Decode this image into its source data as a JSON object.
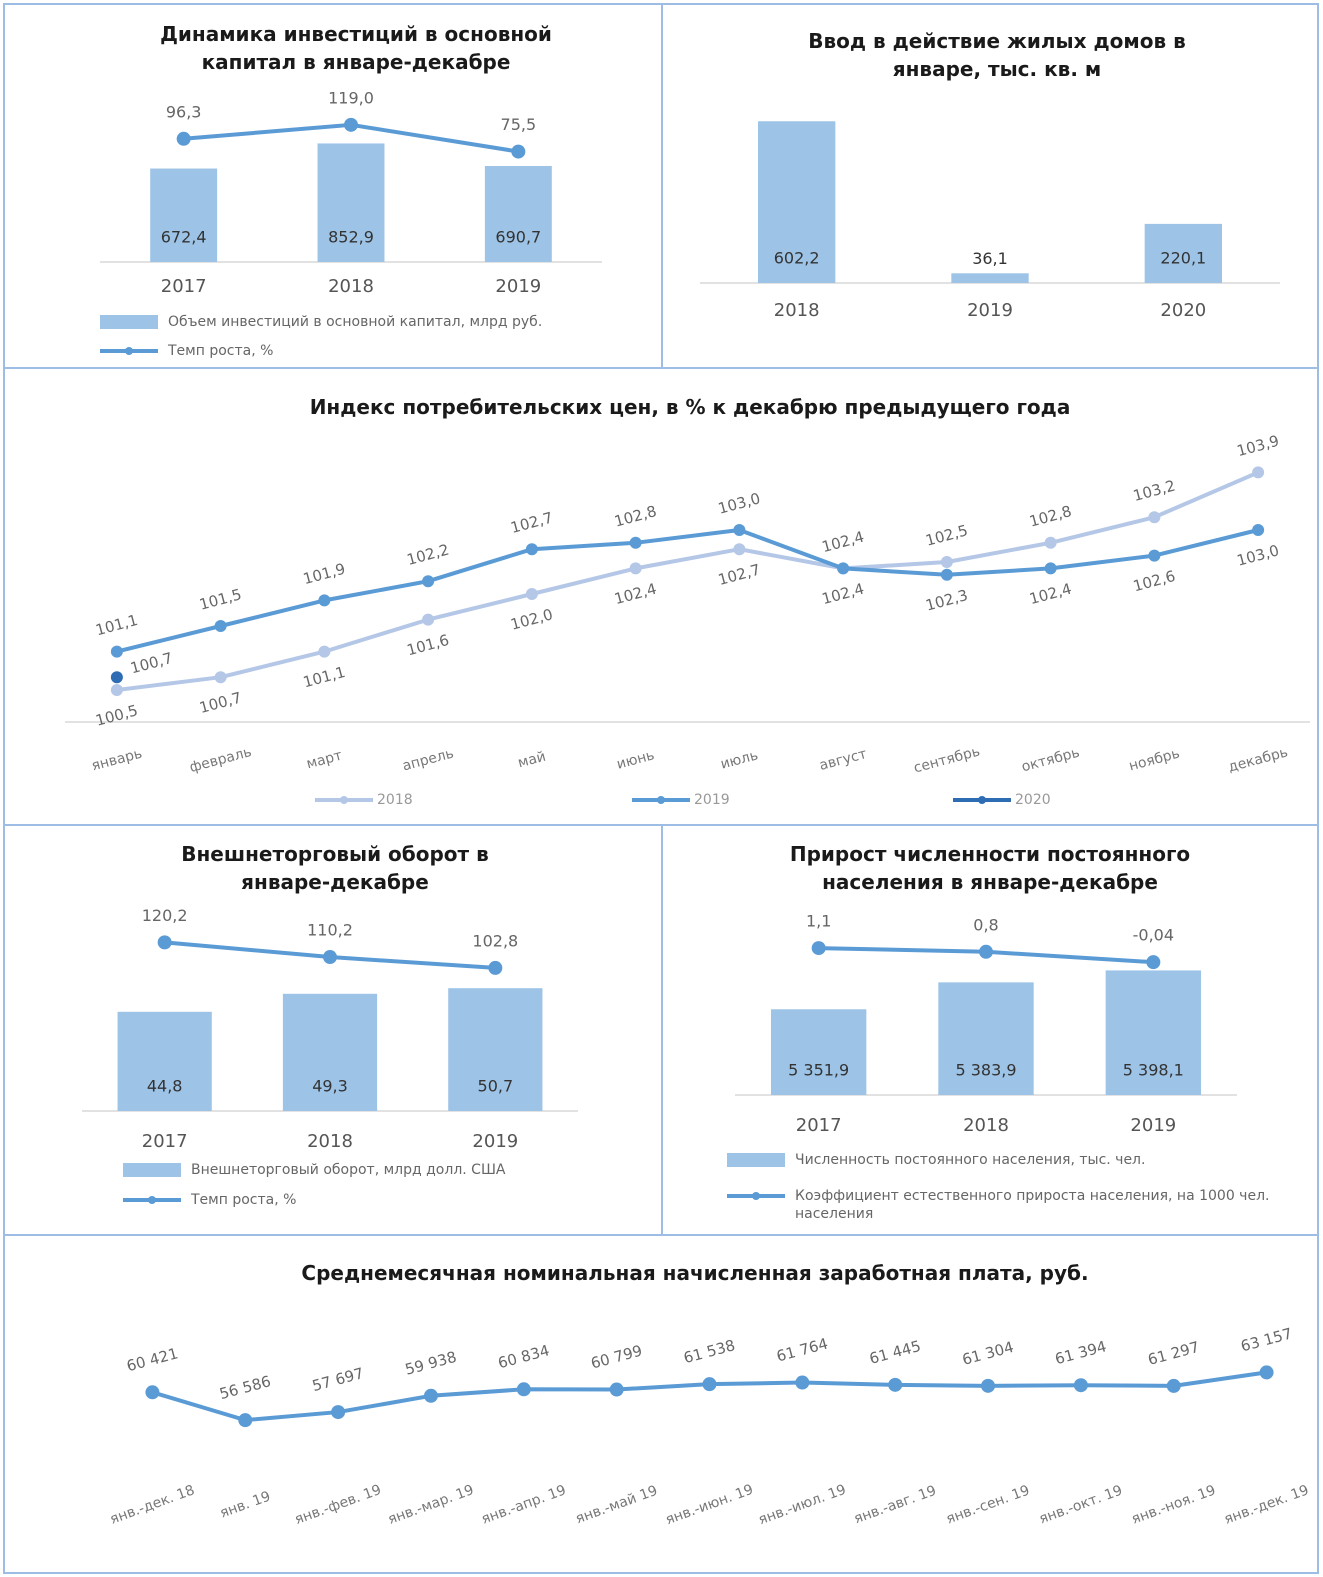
{
  "chart_data": [
    {
      "type": "combo",
      "title": "Динамика инвестиций в основной капитал в январе-декабре",
      "categories": [
        "2017",
        "2018",
        "2019"
      ],
      "series": [
        {
          "name": "Объем инвестиций в основной капитал, млрд руб.",
          "type": "bar",
          "color": "#9dc3e6",
          "values": [
            672.4,
            852.9,
            690.7
          ],
          "value_labels": [
            "672,4",
            "852,9",
            "690,7"
          ]
        },
        {
          "name": "Темп роста, %",
          "type": "line",
          "axis": "y2",
          "color": "#5b9bd5",
          "values": [
            96.3,
            119.0,
            75.5
          ],
          "value_labels": [
            "96,3",
            "119,0",
            "75,5"
          ]
        }
      ],
      "ylim": [
        0,
        1000
      ],
      "y2lim": [
        0,
        200
      ]
    },
    {
      "type": "bar",
      "title": "Ввод в действие жилых домов в январе, тыс. кв. м",
      "categories": [
        "2018",
        "2019",
        "2020"
      ],
      "values": [
        602.2,
        36.1,
        220.1
      ],
      "value_labels": [
        "602,2",
        "36,1",
        "220,1"
      ],
      "color": "#9dc3e6",
      "ylim": [
        0,
        700
      ]
    },
    {
      "type": "line",
      "title": "Индекс потребительских цен, в % к декабрю предыдущего года",
      "categories": [
        "январь",
        "февраль",
        "март",
        "апрель",
        "май",
        "июнь",
        "июль",
        "август",
        "сентябрь",
        "октябрь",
        "ноябрь",
        "декабрь"
      ],
      "series": [
        {
          "name": "2018",
          "color": "#b4c7e7",
          "values": [
            100.5,
            100.7,
            101.1,
            101.6,
            102.0,
            102.4,
            102.7,
            102.4,
            102.5,
            102.8,
            103.2,
            103.9
          ],
          "value_labels": [
            "100,5",
            "100,7",
            "101,1",
            "101,6",
            "102,0",
            "102,4",
            "102,7",
            "102,4",
            "102,5",
            "102,8",
            "103,2",
            "103,9"
          ]
        },
        {
          "name": "2019",
          "color": "#5b9bd5",
          "values": [
            101.1,
            101.5,
            101.9,
            102.2,
            102.7,
            102.8,
            103.0,
            102.4,
            102.3,
            102.4,
            102.6,
            103.0
          ],
          "value_labels": [
            "101,1",
            "101,5",
            "101,9",
            "102,2",
            "102,7",
            "102,8",
            "103,0",
            "102,4",
            "102,3",
            "102,4",
            "102,6",
            "103,0"
          ]
        },
        {
          "name": "2020",
          "color": "#2e6db4",
          "values": [
            100.7,
            null,
            null,
            null,
            null,
            null,
            null,
            null,
            null,
            null,
            null,
            null
          ],
          "value_labels": [
            "100,7",
            null,
            null,
            null,
            null,
            null,
            null,
            null,
            null,
            null,
            null,
            null
          ]
        }
      ],
      "ylim": [
        100,
        104
      ]
    },
    {
      "type": "combo",
      "title": "Внешнеторговый оборот в январе-декабре",
      "categories": [
        "2017",
        "2018",
        "2019"
      ],
      "series": [
        {
          "name": "Внешнеторговый оборот, млрд долл. США",
          "type": "bar",
          "color": "#9dc3e6",
          "values": [
            44.8,
            49.3,
            50.7
          ],
          "value_labels": [
            "44,8",
            "49,3",
            "50,7"
          ]
        },
        {
          "name": "Темп роста, %",
          "type": "line",
          "axis": "y2",
          "color": "#5b9bd5",
          "values": [
            120.2,
            110.2,
            102.8
          ],
          "value_labels": [
            "120,2",
            "110,2",
            "102,8"
          ]
        }
      ],
      "ylim": [
        20,
        60
      ],
      "y2lim": [
        100,
        130
      ]
    },
    {
      "type": "combo",
      "title": "Прирост численности постоянного населения в январе-декабре",
      "categories": [
        "2017",
        "2018",
        "2019"
      ],
      "series": [
        {
          "name": "Численность постоянного населения, тыс. чел.",
          "type": "bar",
          "color": "#9dc3e6",
          "values": [
            5351.9,
            5383.9,
            5398.1
          ],
          "value_labels": [
            "5 351,9",
            "5 383,9",
            "5 398,1"
          ]
        },
        {
          "name": "Коэффициент естественного прироста населения, на 1000 чел. населения",
          "type": "line",
          "axis": "y2",
          "color": "#5b9bd5",
          "values": [
            1.1,
            0.8,
            -0.04
          ],
          "value_labels": [
            "1,1",
            "0,8",
            "-0,04"
          ]
        }
      ],
      "ylim": [
        5250,
        5420
      ],
      "y2lim": [
        -1,
        2
      ]
    },
    {
      "type": "line",
      "title": "Среднемесячная номинальная начисленная заработная плата, руб.",
      "categories": [
        "янв.-дек. 18",
        "янв. 19",
        "янв.-фев. 19",
        "янв.-мар. 19",
        "янв.-апр. 19",
        "янв.-май 19",
        "янв.-июн. 19",
        "янв.-июл. 19",
        "янв.-авг. 19",
        "янв.-сен. 19",
        "янв.-окт. 19",
        "янв.-ноя. 19",
        "янв.-дек. 19"
      ],
      "values": [
        60421,
        56586,
        57697,
        59938,
        60834,
        60799,
        61538,
        61764,
        61445,
        61304,
        61394,
        61297,
        63157
      ],
      "value_labels": [
        "60 421",
        "56 586",
        "57 697",
        "59 938",
        "60 834",
        "60 799",
        "61 538",
        "61 764",
        "61 445",
        "61 304",
        "61 394",
        "61 297",
        "63 157"
      ],
      "color": "#5b9bd5",
      "ylim": [
        50000,
        65000
      ]
    }
  ]
}
